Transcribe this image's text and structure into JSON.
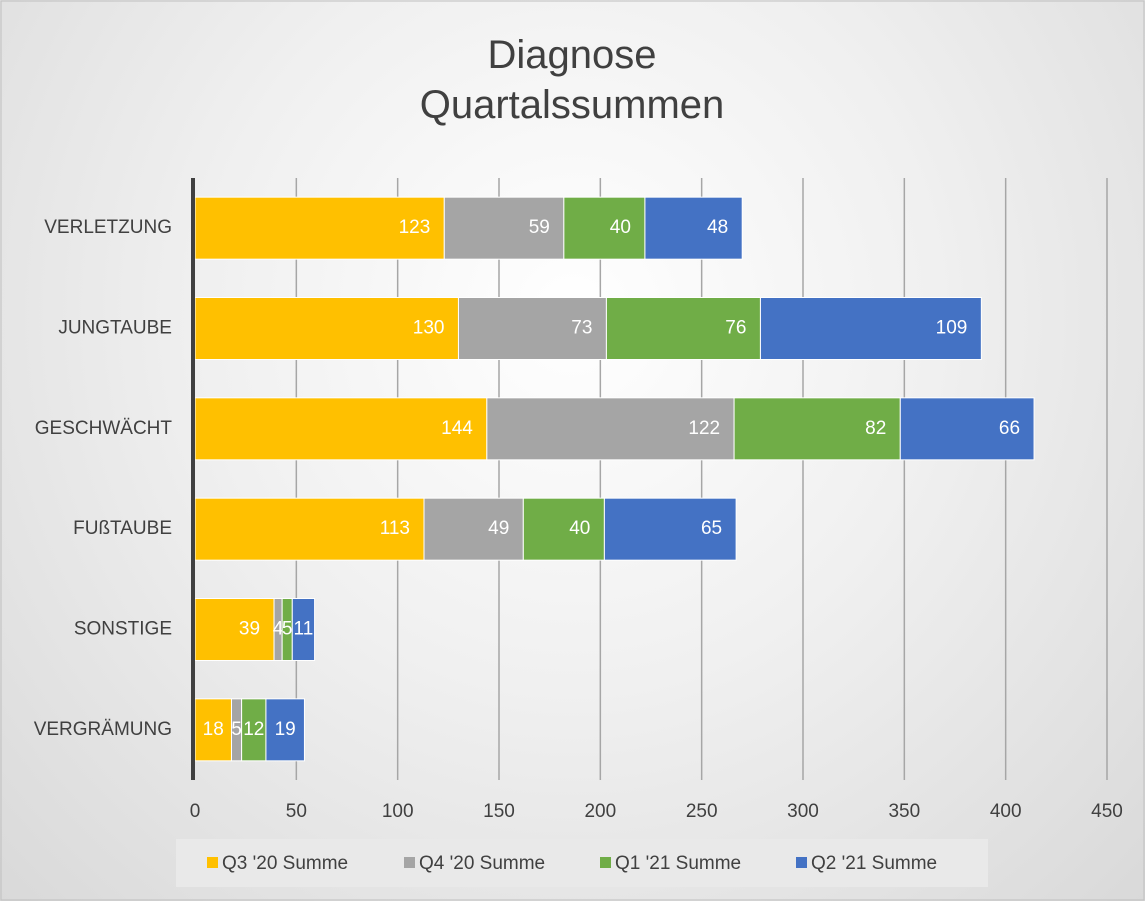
{
  "chart_data": {
    "type": "stacked_barh",
    "title": "Diagnose Quartalssummen",
    "categories": [
      "VERLETZUNG",
      "JUNGTAUBE",
      "GESCHWÄCHT",
      "FUßTAUBE",
      "SONSTIGE",
      "VERGRÄMUNG"
    ],
    "series": [
      {
        "name": "Q3 '20 Summe",
        "color": "#ffc000",
        "values": [
          123,
          130,
          144,
          113,
          39,
          18
        ]
      },
      {
        "name": "Q4 '20 Summe",
        "color": "#a5a5a5",
        "values": [
          59,
          73,
          122,
          49,
          4,
          5
        ]
      },
      {
        "name": "Q1 '21 Summe",
        "color": "#70ad47",
        "values": [
          40,
          76,
          82,
          40,
          5,
          12
        ]
      },
      {
        "name": "Q2 '21 Summe",
        "color": "#4472c4",
        "values": [
          48,
          109,
          66,
          65,
          11,
          19
        ]
      }
    ],
    "xlim": [
      0,
      450
    ],
    "xticks": [
      0,
      50,
      100,
      150,
      200,
      250,
      300,
      350,
      400,
      450
    ],
    "grid": true,
    "legend": "bottom"
  }
}
